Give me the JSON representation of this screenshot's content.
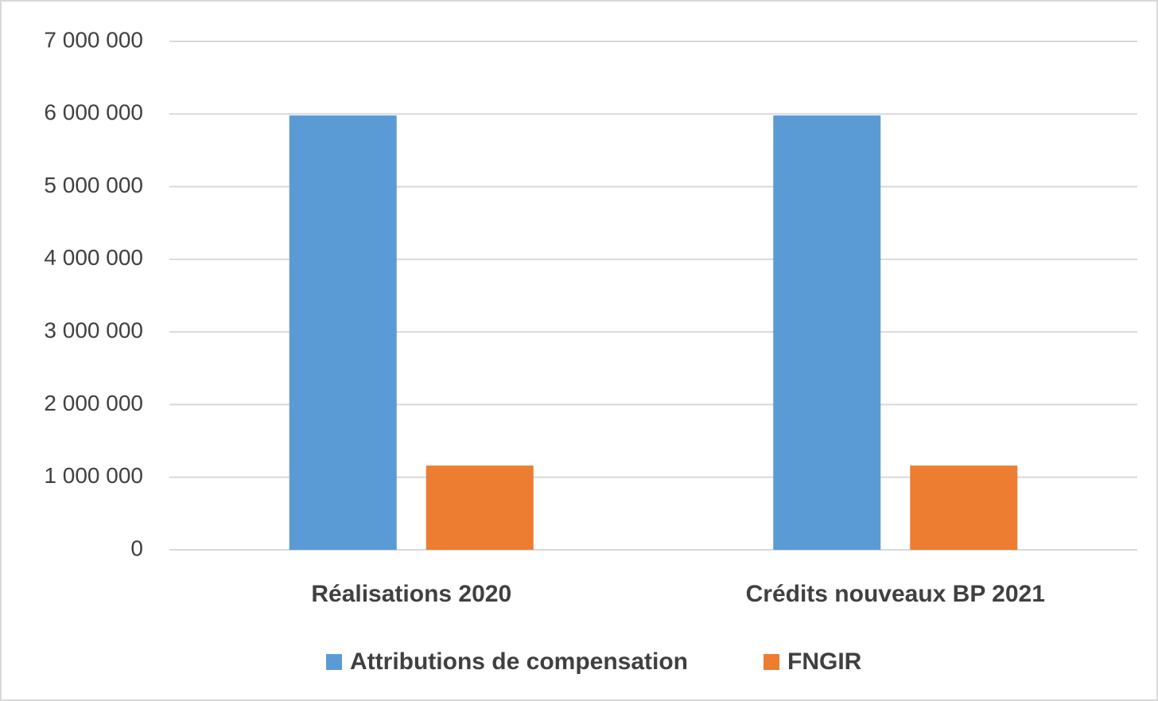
{
  "chart_data": {
    "type": "bar",
    "categories": [
      "Réalisations 2020",
      "Crédits nouveaux BP 2021"
    ],
    "series": [
      {
        "name": "Attributions de compensation",
        "color": "#5b9bd5",
        "values": [
          5980000,
          5980000
        ]
      },
      {
        "name": "FNGIR",
        "color": "#ed7d31",
        "values": [
          1160000,
          1160000
        ]
      }
    ],
    "ylim": [
      0,
      7000000
    ],
    "yticks": [
      0,
      {
        "value": 1000000,
        "label": "1 000 000"
      },
      {
        "value": 2000000,
        "label": "2 000 000"
      },
      {
        "value": 3000000,
        "label": "3 000 000"
      },
      {
        "value": 4000000,
        "label": "4 000 000"
      },
      {
        "value": 5000000,
        "label": "5 000 000"
      },
      {
        "value": 6000000,
        "label": "6 000 000"
      },
      {
        "value": 7000000,
        "label": "7 000 000"
      }
    ],
    "grid": true,
    "legend": "bottom"
  }
}
